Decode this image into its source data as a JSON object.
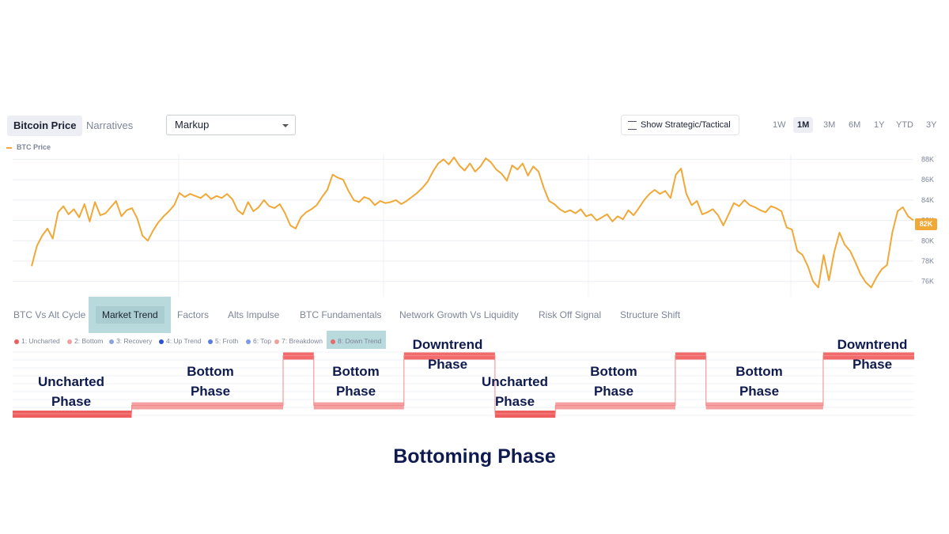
{
  "toolbar": {
    "view_tabs": [
      "Bitcoin Price",
      "Narratives"
    ],
    "dropdown_value": "Markup",
    "toggle_label": "Show Strategic/Tactical",
    "ranges": [
      "1W",
      "1M",
      "3M",
      "6M",
      "1Y",
      "YTD",
      "3Y"
    ],
    "active_range": "1M"
  },
  "indicator_tabs": [
    "BTC Vs Alt Cycle",
    "Market Trend",
    "Factors",
    "Alts Impulse",
    "BTC Fundamentals",
    "Network Growth Vs Liquidity",
    "Risk Off Signal",
    "Structure Shift"
  ],
  "phase_legend": [
    {
      "label": "1: Uncharted",
      "color": "#ef5e5e"
    },
    {
      "label": "2: Bottom",
      "color": "#f4a0a0"
    },
    {
      "label": "3: Recovery",
      "color": "#8aa4e0"
    },
    {
      "label": "4: Up Trend",
      "color": "#2b4fd8"
    },
    {
      "label": "5: Froth",
      "color": "#5a7ce6"
    },
    {
      "label": "6: Top",
      "color": "#7c9ae8"
    },
    {
      "label": "7: Breakdown",
      "color": "#f4a0a0"
    },
    {
      "label": "8: Down Trend",
      "color": "#e56a6a"
    }
  ],
  "phase_annotations": [
    {
      "line1": "Uncharted",
      "line2": "Phase"
    },
    {
      "line1": "Bottom",
      "line2": "Phase"
    },
    {
      "line1": "Bottom",
      "line2": "Phase"
    },
    {
      "line1": "Downtrend",
      "line2": "Phase"
    },
    {
      "line1": "Uncharted",
      "line2": "Phase"
    },
    {
      "line1": "Bottom",
      "line2": "Phase"
    },
    {
      "line1": "Bottom",
      "line2": "Phase"
    },
    {
      "line1": "Downtrend",
      "line2": "Phase"
    }
  ],
  "caption": "Bottoming Phase",
  "colors": {
    "price": "#f0a838",
    "uncharted": "#ef5e5e",
    "bottom": "#f4a0a0",
    "downtrend": "#f26a6a"
  },
  "chart_data": [
    {
      "type": "line",
      "series": [
        {
          "name": "BTC Price",
          "values": [
            77.5,
            79.5,
            80.5,
            81.2,
            80.2,
            82.8,
            83.4,
            82.6,
            83.1,
            82.3,
            83.6,
            81.9,
            83.8,
            82.5,
            82.7,
            83.3,
            83.9,
            82.4,
            83.0,
            83.2,
            82.2,
            80.5,
            80.0,
            81.0,
            81.8,
            82.4,
            82.9,
            83.5,
            84.7,
            84.3,
            84.6,
            84.4,
            84.2,
            84.6,
            84.1,
            84.4,
            84.2,
            84.6,
            84.1,
            83.0,
            82.6,
            83.8,
            82.9,
            83.3,
            84.0,
            83.4,
            83.2,
            83.6,
            82.7,
            81.5,
            81.2,
            82.3,
            82.8,
            83.1,
            83.5,
            84.3,
            85.0,
            86.5,
            86.2,
            86.0,
            84.9,
            84.0,
            83.8,
            84.3,
            84.1,
            83.5,
            83.9,
            83.7,
            83.8,
            84.0,
            83.6,
            83.9,
            84.3,
            84.7,
            85.2,
            85.8,
            86.8,
            87.6,
            88.0,
            87.5,
            88.2,
            87.4,
            86.9,
            87.6,
            86.8,
            87.3,
            88.1,
            87.7,
            87.0,
            86.6,
            85.9,
            87.4,
            87.0,
            87.6,
            86.4,
            87.3,
            86.8,
            85.2,
            83.9,
            83.6,
            83.1,
            82.8,
            83.0,
            82.7,
            83.1,
            82.4,
            82.6,
            82.0,
            82.3,
            82.6,
            81.9,
            82.4,
            82.1,
            83.0,
            82.5,
            83.2,
            84.0,
            84.6,
            85.0,
            84.6,
            84.9,
            84.2,
            86.5,
            87.1,
            84.6,
            83.5,
            83.9,
            82.6,
            82.8,
            83.1,
            82.5,
            81.5,
            82.6,
            83.7,
            83.4,
            84.0,
            83.5,
            83.3,
            83.0,
            82.8,
            83.4,
            83.2,
            82.9,
            81.3,
            81.1,
            79.0,
            78.6,
            77.5,
            76.0,
            75.4,
            78.6,
            76.1,
            78.9,
            80.8,
            79.6,
            79.0,
            77.9,
            76.7,
            75.9,
            75.4,
            76.4,
            77.2,
            77.6,
            80.8,
            82.9,
            83.3,
            82.4,
            82.0
          ]
        }
      ],
      "ylim": [
        74.5,
        88.5
      ],
      "y_ticks": [
        "76K",
        "78K",
        "80K",
        "82K",
        "84K",
        "86K",
        "88K"
      ],
      "last_value_label": "82K",
      "legend": "top-left",
      "grid": true
    },
    {
      "type": "area",
      "segments": [
        {
          "phase": "1: Uncharted",
          "level": 1,
          "start": 0.0,
          "end": 0.132
        },
        {
          "phase": "2: Bottom",
          "level": 2,
          "start": 0.132,
          "end": 0.3
        },
        {
          "phase": "8: Down Trend",
          "level": 8,
          "start": 0.3,
          "end": 0.334
        },
        {
          "phase": "2: Bottom",
          "level": 2,
          "start": 0.334,
          "end": 0.434
        },
        {
          "phase": "8: Down Trend",
          "level": 8,
          "start": 0.434,
          "end": 0.535
        },
        {
          "phase": "1: Uncharted",
          "level": 1,
          "start": 0.535,
          "end": 0.602
        },
        {
          "phase": "2: Bottom",
          "level": 2,
          "start": 0.602,
          "end": 0.735
        },
        {
          "phase": "8: Down Trend",
          "level": 8,
          "start": 0.735,
          "end": 0.769
        },
        {
          "phase": "2: Bottom",
          "level": 2,
          "start": 0.769,
          "end": 0.899
        },
        {
          "phase": "8: Down Trend",
          "level": 8,
          "start": 0.899,
          "end": 1.0
        }
      ]
    }
  ]
}
